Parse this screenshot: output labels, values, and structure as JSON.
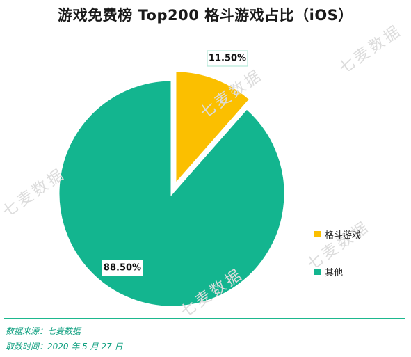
{
  "title": "游戏免费榜 Top200 格斗游戏占比（iOS）",
  "watermark": "七麦数据",
  "chart_data": {
    "type": "pie",
    "title": "游戏免费榜 Top200 格斗游戏占比（iOS）",
    "slices": [
      {
        "name": "格斗游戏",
        "value": 11.5,
        "label": "11.50%",
        "color": "#fbbf00",
        "exploded": true
      },
      {
        "name": "其他",
        "value": 88.5,
        "label": "88.50%",
        "color": "#13b58f",
        "exploded": false
      }
    ],
    "legend_position": "right",
    "start_angle": "12 o'clock, clockwise"
  },
  "footer": {
    "source": "数据来源：七麦数据",
    "date": "取数时间：2020 年 5 月 27 日"
  },
  "colors": {
    "accent": "#13b58f",
    "highlight": "#fbbf00",
    "footer_text": "#0e9f7f"
  }
}
